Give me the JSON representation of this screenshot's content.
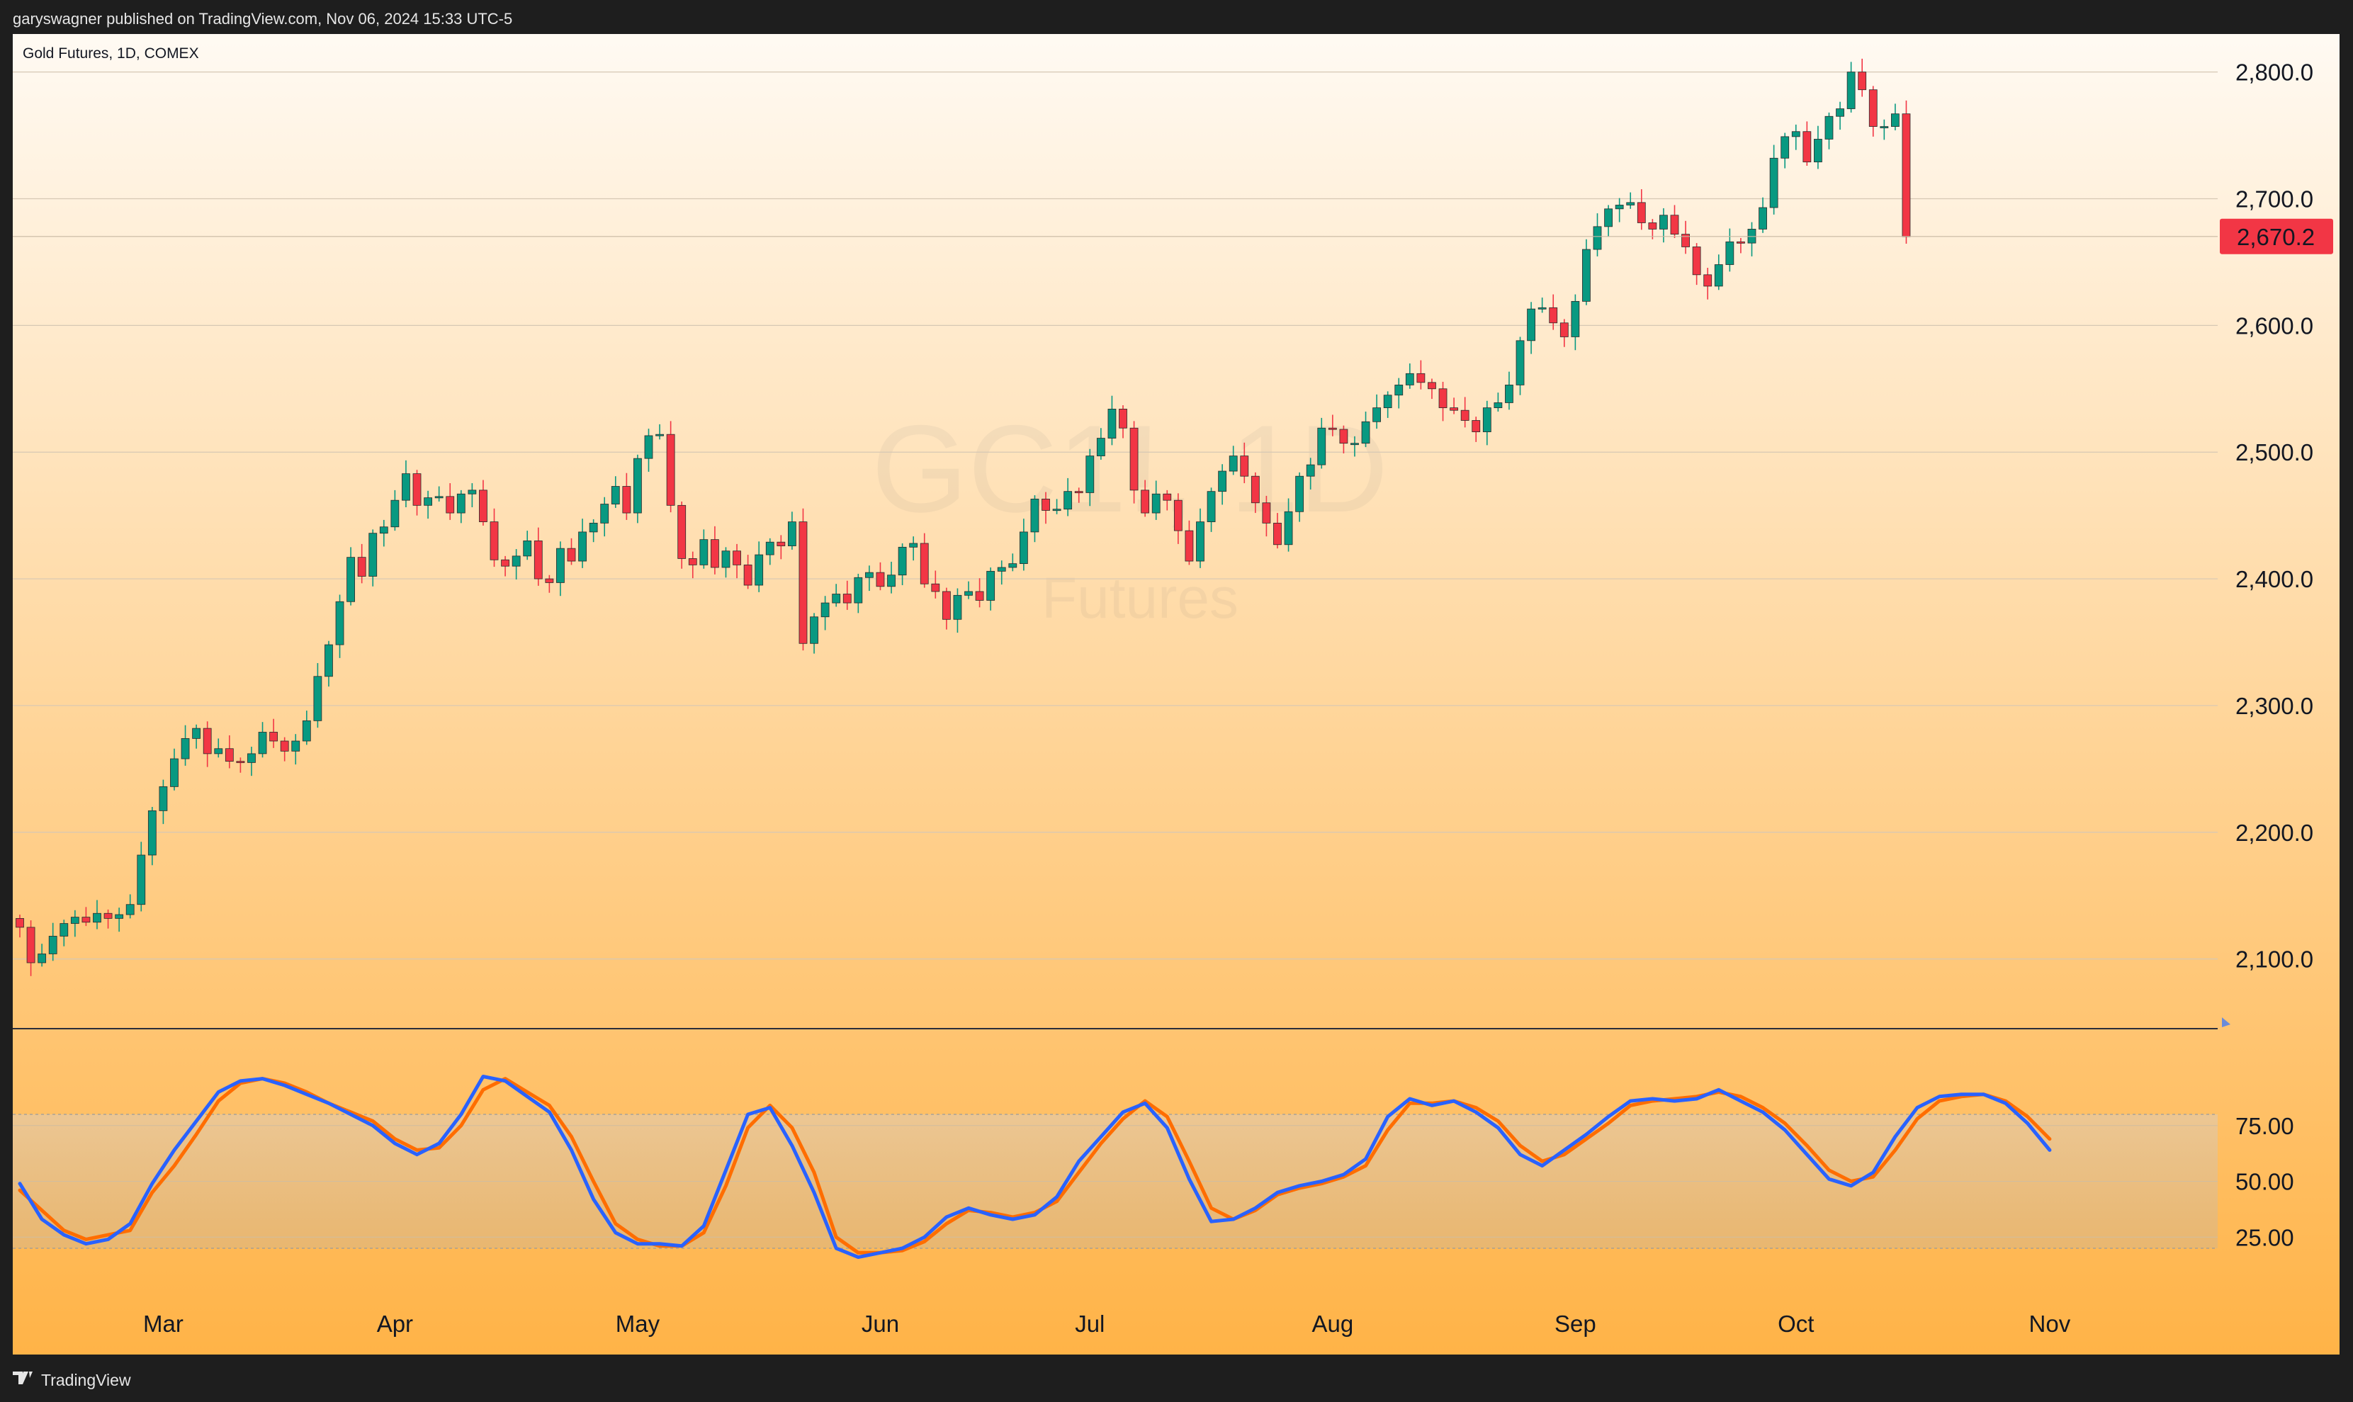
{
  "header": {
    "published_text": "garyswagner published on TradingView.com, Nov 06, 2024 15:33 UTC-5",
    "symbol_title": "Gold Futures, 1D, COMEX"
  },
  "watermark": {
    "symbol": "GC1!, 1D",
    "name": "Futures"
  },
  "footer": {
    "brand_text": "TradingView"
  },
  "last_price": {
    "label": "2,670.2",
    "value": 2670.2,
    "color": "#f23645"
  },
  "colors": {
    "up": "#089981",
    "down": "#f23645",
    "bg_top": "#fffaf3",
    "bg_bottom": "#ffb347",
    "stoch_k": "#2962ff",
    "stoch_d": "#ff6d00"
  },
  "chart_data": [
    {
      "type": "candlestick",
      "title": "Gold Futures, 1D, COMEX",
      "ylim": [
        2045,
        2830
      ],
      "y_ticks": [
        {
          "value": 2100,
          "label": "2,100.0"
        },
        {
          "value": 2200,
          "label": "2,200.0"
        },
        {
          "value": 2300,
          "label": "2,300.0"
        },
        {
          "value": 2400,
          "label": "2,400.0"
        },
        {
          "value": 2500,
          "label": "2,500.0"
        },
        {
          "value": 2600,
          "label": "2,600.0"
        },
        {
          "value": 2700,
          "label": "2,700.0"
        },
        {
          "value": 2800,
          "label": "2,800.0"
        }
      ],
      "x_ticks": [
        {
          "index": 13,
          "label": "Mar"
        },
        {
          "index": 34,
          "label": "Apr"
        },
        {
          "index": 56,
          "label": "May"
        },
        {
          "index": 78,
          "label": "Jun"
        },
        {
          "index": 97,
          "label": "Jul"
        },
        {
          "index": 119,
          "label": "Aug"
        },
        {
          "index": 141,
          "label": "Sep"
        },
        {
          "index": 161,
          "label": "Oct"
        },
        {
          "index": 184,
          "label": "Nov"
        }
      ],
      "closes": [
        2125,
        2097,
        2104,
        2118,
        2128,
        2133,
        2129,
        2136,
        2132,
        2135,
        2143,
        2182,
        2217,
        2236,
        2258,
        2274,
        2282,
        2262,
        2266,
        2256,
        2255,
        2262,
        2279,
        2272,
        2264,
        2272,
        2288,
        2323,
        2348,
        2382,
        2417,
        2402,
        2436,
        2441,
        2462,
        2483,
        2458,
        2464,
        2465,
        2452,
        2467,
        2470,
        2445,
        2415,
        2410,
        2418,
        2430,
        2400,
        2397,
        2424,
        2414,
        2437,
        2444,
        2459,
        2473,
        2452,
        2495,
        2513,
        2514,
        2458,
        2416,
        2411,
        2431,
        2409,
        2422,
        2411,
        2395,
        2419,
        2429,
        2426,
        2445,
        2349,
        2370,
        2381,
        2388,
        2381,
        2401,
        2405,
        2394,
        2403,
        2425,
        2428,
        2396,
        2390,
        2368,
        2387,
        2390,
        2383,
        2406,
        2409,
        2412,
        2437,
        2463,
        2454,
        2455,
        2469,
        2468,
        2497,
        2511,
        2534,
        2519,
        2470,
        2452,
        2467,
        2462,
        2438,
        2414,
        2445,
        2469,
        2485,
        2497,
        2481,
        2460,
        2444,
        2427,
        2453,
        2481,
        2490,
        2519,
        2518,
        2507,
        2507,
        2524,
        2535,
        2545,
        2553,
        2562,
        2555,
        2550,
        2535,
        2533,
        2525,
        2516,
        2535,
        2539,
        2553,
        2588,
        2613,
        2614,
        2602,
        2591,
        2619,
        2660,
        2678,
        2692,
        2695,
        2697,
        2681,
        2676,
        2687,
        2672,
        2662,
        2640,
        2631,
        2648,
        2666,
        2665,
        2676,
        2693,
        2732,
        2749,
        2753,
        2729,
        2747,
        2765,
        2771,
        2800,
        2786,
        2757,
        2757,
        2767,
        2670
      ]
    },
    {
      "type": "line",
      "name": "Stochastic",
      "ylim": [
        0,
        100
      ],
      "y_ticks": [
        {
          "value": 25,
          "label": "25.00"
        },
        {
          "value": 50,
          "label": "50.00"
        },
        {
          "value": 75,
          "label": "75.00"
        }
      ],
      "levels": {
        "upper": 80,
        "lower": 20
      },
      "series": [
        {
          "key": "k",
          "values": [
            49,
            33,
            26,
            22,
            24,
            31,
            49,
            64,
            77,
            90,
            95,
            96,
            93,
            89,
            85,
            80,
            75,
            67,
            62,
            67,
            80,
            97,
            95,
            88,
            81,
            64,
            42,
            27,
            22,
            22,
            21,
            30,
            55,
            80,
            83,
            66,
            45,
            20,
            16,
            18,
            20,
            25,
            34,
            38,
            35,
            33,
            35,
            43,
            59,
            70,
            81,
            85,
            74,
            51,
            32,
            33,
            38,
            45,
            48,
            50,
            53,
            60,
            79,
            87,
            84,
            86,
            81,
            74,
            62,
            57,
            64,
            71,
            79,
            86,
            87,
            86,
            87,
            91,
            86,
            81,
            73,
            62,
            51,
            48,
            54,
            70,
            83,
            88,
            89,
            89,
            85,
            76,
            64
          ]
        },
        {
          "key": "d",
          "values": [
            46,
            37,
            28,
            24,
            26,
            28,
            45,
            57,
            71,
            86,
            94,
            96,
            94,
            90,
            85,
            81,
            77,
            69,
            64,
            65,
            75,
            91,
            96,
            90,
            84,
            70,
            50,
            31,
            24,
            21,
            21,
            27,
            48,
            74,
            84,
            74,
            54,
            25,
            18,
            18,
            19,
            23,
            31,
            37,
            36,
            34,
            36,
            41,
            54,
            67,
            78,
            86,
            79,
            59,
            38,
            33,
            37,
            44,
            47,
            49,
            52,
            57,
            73,
            85,
            85,
            86,
            83,
            77,
            66,
            59,
            62,
            69,
            76,
            84,
            86,
            87,
            88,
            90,
            88,
            83,
            76,
            66,
            55,
            50,
            52,
            64,
            78,
            86,
            88,
            89,
            86,
            79,
            69
          ]
        }
      ]
    }
  ]
}
